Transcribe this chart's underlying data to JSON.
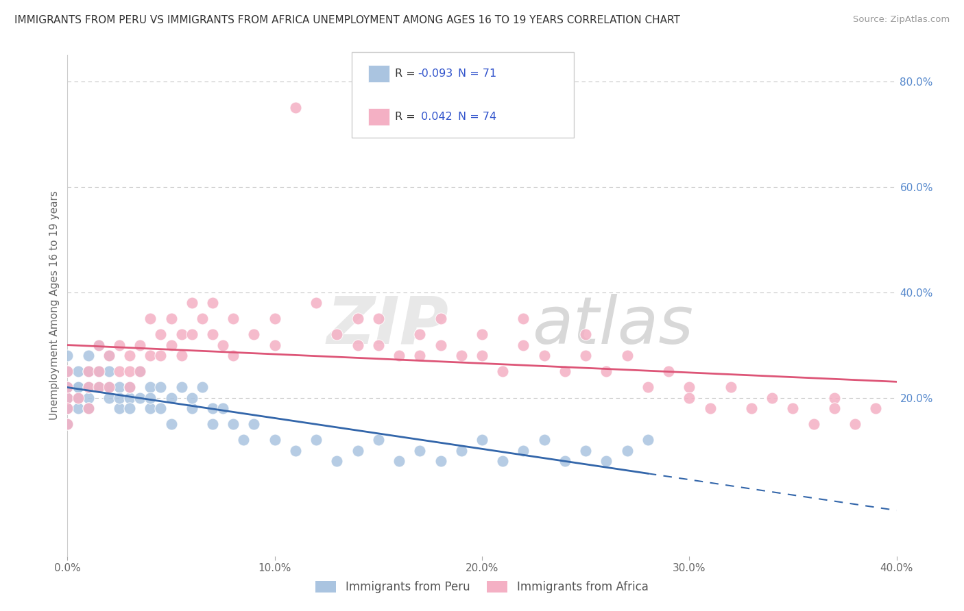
{
  "title": "IMMIGRANTS FROM PERU VS IMMIGRANTS FROM AFRICA UNEMPLOYMENT AMONG AGES 16 TO 19 YEARS CORRELATION CHART",
  "source": "Source: ZipAtlas.com",
  "ylabel": "Unemployment Among Ages 16 to 19 years",
  "xlim": [
    0.0,
    0.4
  ],
  "ylim": [
    -0.1,
    0.85
  ],
  "xticks": [
    0.0,
    0.1,
    0.2,
    0.3,
    0.4
  ],
  "xtick_labels": [
    "0.0%",
    "10.0%",
    "20.0%",
    "30.0%",
    "40.0%"
  ],
  "ytick_labels_right": [
    "80.0%",
    "60.0%",
    "40.0%",
    "20.0%"
  ],
  "ytick_vals_right": [
    0.8,
    0.6,
    0.4,
    0.2
  ],
  "grid_color": "#c8c8c8",
  "background_color": "#ffffff",
  "peru_color": "#aac4e0",
  "africa_color": "#f4b0c4",
  "peru_line_color": "#3366aa",
  "africa_line_color": "#dd5577",
  "legend_r_color": "#3355cc",
  "R_peru": -0.093,
  "N_peru": 71,
  "R_africa": 0.042,
  "N_africa": 74,
  "peru_x": [
    0.0,
    0.0,
    0.0,
    0.0,
    0.0,
    0.0,
    0.0,
    0.0,
    0.0,
    0.0,
    0.005,
    0.005,
    0.005,
    0.005,
    0.005,
    0.01,
    0.01,
    0.01,
    0.01,
    0.01,
    0.015,
    0.015,
    0.015,
    0.02,
    0.02,
    0.02,
    0.02,
    0.025,
    0.025,
    0.025,
    0.03,
    0.03,
    0.03,
    0.035,
    0.035,
    0.04,
    0.04,
    0.04,
    0.045,
    0.045,
    0.05,
    0.05,
    0.055,
    0.06,
    0.06,
    0.065,
    0.07,
    0.07,
    0.075,
    0.08,
    0.085,
    0.09,
    0.1,
    0.11,
    0.12,
    0.13,
    0.14,
    0.15,
    0.16,
    0.17,
    0.18,
    0.19,
    0.2,
    0.21,
    0.22,
    0.23,
    0.24,
    0.25,
    0.26,
    0.27,
    0.28
  ],
  "peru_y": [
    0.2,
    0.22,
    0.18,
    0.25,
    0.15,
    0.28,
    0.2,
    0.22,
    0.18,
    0.2,
    0.22,
    0.2,
    0.25,
    0.18,
    0.22,
    0.25,
    0.2,
    0.22,
    0.18,
    0.28,
    0.3,
    0.22,
    0.25,
    0.28,
    0.22,
    0.2,
    0.25,
    0.22,
    0.18,
    0.2,
    0.2,
    0.22,
    0.18,
    0.25,
    0.2,
    0.22,
    0.18,
    0.2,
    0.18,
    0.22,
    0.2,
    0.15,
    0.22,
    0.18,
    0.2,
    0.22,
    0.18,
    0.15,
    0.18,
    0.15,
    0.12,
    0.15,
    0.12,
    0.1,
    0.12,
    0.08,
    0.1,
    0.12,
    0.08,
    0.1,
    0.08,
    0.1,
    0.12,
    0.08,
    0.1,
    0.12,
    0.08,
    0.1,
    0.08,
    0.1,
    0.12
  ],
  "africa_x": [
    0.0,
    0.0,
    0.0,
    0.0,
    0.0,
    0.005,
    0.01,
    0.01,
    0.01,
    0.015,
    0.015,
    0.015,
    0.02,
    0.02,
    0.025,
    0.025,
    0.03,
    0.03,
    0.03,
    0.035,
    0.035,
    0.04,
    0.04,
    0.045,
    0.045,
    0.05,
    0.05,
    0.055,
    0.055,
    0.06,
    0.06,
    0.065,
    0.07,
    0.07,
    0.075,
    0.08,
    0.08,
    0.09,
    0.1,
    0.1,
    0.11,
    0.12,
    0.13,
    0.14,
    0.14,
    0.15,
    0.15,
    0.16,
    0.17,
    0.17,
    0.18,
    0.18,
    0.19,
    0.2,
    0.2,
    0.21,
    0.22,
    0.22,
    0.23,
    0.24,
    0.25,
    0.25,
    0.26,
    0.27,
    0.28,
    0.29,
    0.3,
    0.3,
    0.31,
    0.32,
    0.33,
    0.34,
    0.35,
    0.36,
    0.37,
    0.37,
    0.38,
    0.39
  ],
  "africa_y": [
    0.2,
    0.22,
    0.18,
    0.25,
    0.15,
    0.2,
    0.22,
    0.25,
    0.18,
    0.3,
    0.25,
    0.22,
    0.28,
    0.22,
    0.3,
    0.25,
    0.28,
    0.22,
    0.25,
    0.3,
    0.25,
    0.35,
    0.28,
    0.32,
    0.28,
    0.35,
    0.3,
    0.32,
    0.28,
    0.38,
    0.32,
    0.35,
    0.38,
    0.32,
    0.3,
    0.35,
    0.28,
    0.32,
    0.35,
    0.3,
    0.75,
    0.38,
    0.32,
    0.35,
    0.3,
    0.35,
    0.3,
    0.28,
    0.32,
    0.28,
    0.35,
    0.3,
    0.28,
    0.32,
    0.28,
    0.25,
    0.35,
    0.3,
    0.28,
    0.25,
    0.32,
    0.28,
    0.25,
    0.28,
    0.22,
    0.25,
    0.22,
    0.2,
    0.18,
    0.22,
    0.18,
    0.2,
    0.18,
    0.15,
    0.2,
    0.18,
    0.15,
    0.18
  ]
}
